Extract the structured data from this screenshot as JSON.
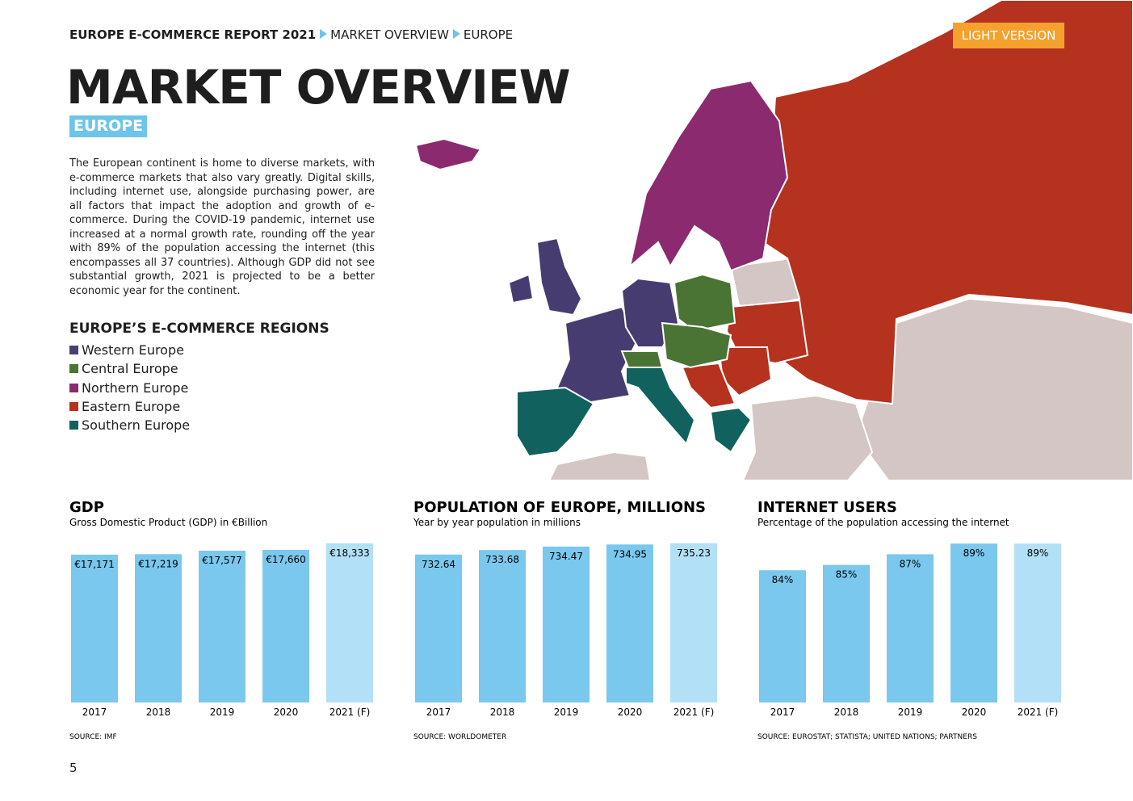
{
  "header": {
    "breadcrumb": [
      "EUROPE E-COMMERCE REPORT 2021",
      "MARKET OVERVIEW",
      "EUROPE"
    ],
    "badge": "LIGHT VERSION"
  },
  "title": "MARKET OVERVIEW",
  "subtitle": "EUROPE",
  "body": "The European continent is home to diverse markets, with e-commerce markets that also vary greatly. Digital skills, including internet use, alongside purchasing power, are all factors that impact the adoption and growth of e-commerce. During the COVID-19 pandemic, internet use increased at a normal growth rate, rounding off the year with 89% of the population accessing the internet (this encompasses all 37 countries). Although GDP did not see substantial growth, 2021 is projected to be a better economic year for the continent.",
  "regions": {
    "title": "EUROPE’S E-COMMERCE REGIONS",
    "items": [
      {
        "label": "Western Europe",
        "color": "#4a3f73"
      },
      {
        "label": "Central Europe",
        "color": "#4a7433"
      },
      {
        "label": "Northern Europe",
        "color": "#8b2a6f"
      },
      {
        "label": "Eastern Europe",
        "color": "#b5321e"
      },
      {
        "label": "Southern Europe",
        "color": "#11615e"
      }
    ]
  },
  "chart_data": [
    {
      "type": "bar",
      "title": "GDP",
      "subtitle": "Gross Domestic Product (GDP) in €Billion",
      "categories": [
        "2017",
        "2018",
        "2019",
        "2020",
        "2021 (F)"
      ],
      "values": [
        17171,
        17219,
        17577,
        17660,
        18333
      ],
      "value_labels": [
        "€17,171",
        "€17,219",
        "€17,577",
        "€17,660",
        "€18,333"
      ],
      "colors": [
        "#7ac8ee",
        "#7ac8ee",
        "#7ac8ee",
        "#7ac8ee",
        "#b2e0f6"
      ],
      "ylim": [
        2000,
        19400
      ],
      "source": "SOURCE: IMF"
    },
    {
      "type": "bar",
      "title": "POPULATION OF EUROPE, MILLIONS",
      "subtitle": "Year by year population in millions",
      "categories": [
        "2017",
        "2018",
        "2019",
        "2020",
        "2021 (F)"
      ],
      "values": [
        732.64,
        733.68,
        734.47,
        734.95,
        735.23
      ],
      "colors": [
        "#7ac8ee",
        "#7ac8ee",
        "#7ac8ee",
        "#7ac8ee",
        "#b2e0f6"
      ],
      "ylim": [
        698.7,
        737.6
      ],
      "source": "SOURCE: WORLDOMETER"
    },
    {
      "type": "bar",
      "title": "INTERNET USERS",
      "subtitle": "Percentage of the population accessing the internet",
      "categories": [
        "2017",
        "2018",
        "2019",
        "2020",
        "2021 (F)"
      ],
      "values": [
        84,
        85,
        87,
        89,
        89
      ],
      "value_labels": [
        "84%",
        "85%",
        "87%",
        "89%",
        "89%"
      ],
      "colors": [
        "#7ac8ee",
        "#7ac8ee",
        "#7ac8ee",
        "#7ac8ee",
        "#b2e0f6"
      ],
      "ylim": [
        59.2,
        91
      ],
      "source": "SOURCE: EUROSTAT; STATISTA; UNITED NATIONS; PARTNERS"
    }
  ],
  "page_number": "5"
}
